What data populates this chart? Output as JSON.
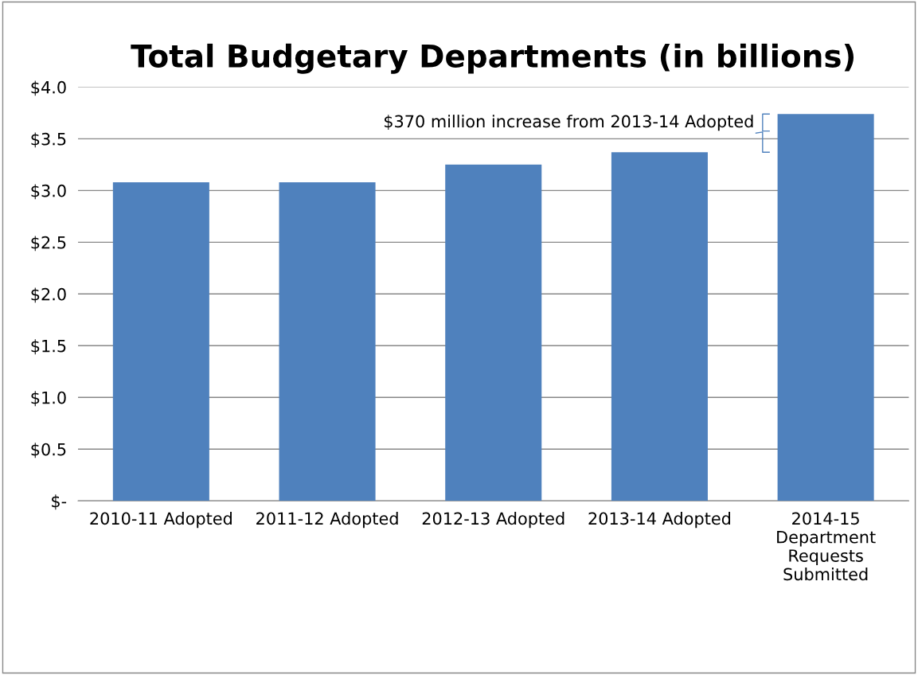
{
  "chart_data": {
    "type": "bar",
    "title": "Total Budgetary Departments (in billions)",
    "categories": [
      "2010-11 Adopted",
      "2011-12 Adopted",
      "2012-13 Adopted",
      "2013-14 Adopted",
      "2014-15\nDepartment\nRequests\nSubmitted"
    ],
    "values": [
      3.08,
      3.08,
      3.25,
      3.37,
      3.74
    ],
    "color": "#4f81bd",
    "ylim": [
      0,
      4.0
    ],
    "yticks": [
      {
        "value": 0,
        "label": "$-"
      },
      {
        "value": 0.5,
        "label": "$0.5"
      },
      {
        "value": 1.0,
        "label": "$1.0"
      },
      {
        "value": 1.5,
        "label": "$1.5"
      },
      {
        "value": 2.0,
        "label": "$2.0"
      },
      {
        "value": 2.5,
        "label": "$2.5"
      },
      {
        "value": 3.0,
        "label": "$3.0"
      },
      {
        "value": 3.5,
        "label": "$3.5"
      },
      {
        "value": 4.0,
        "label": "$4.0"
      }
    ],
    "grid": "y",
    "annotations": [
      "$370 million increase from 2013-14 Adopted"
    ]
  }
}
